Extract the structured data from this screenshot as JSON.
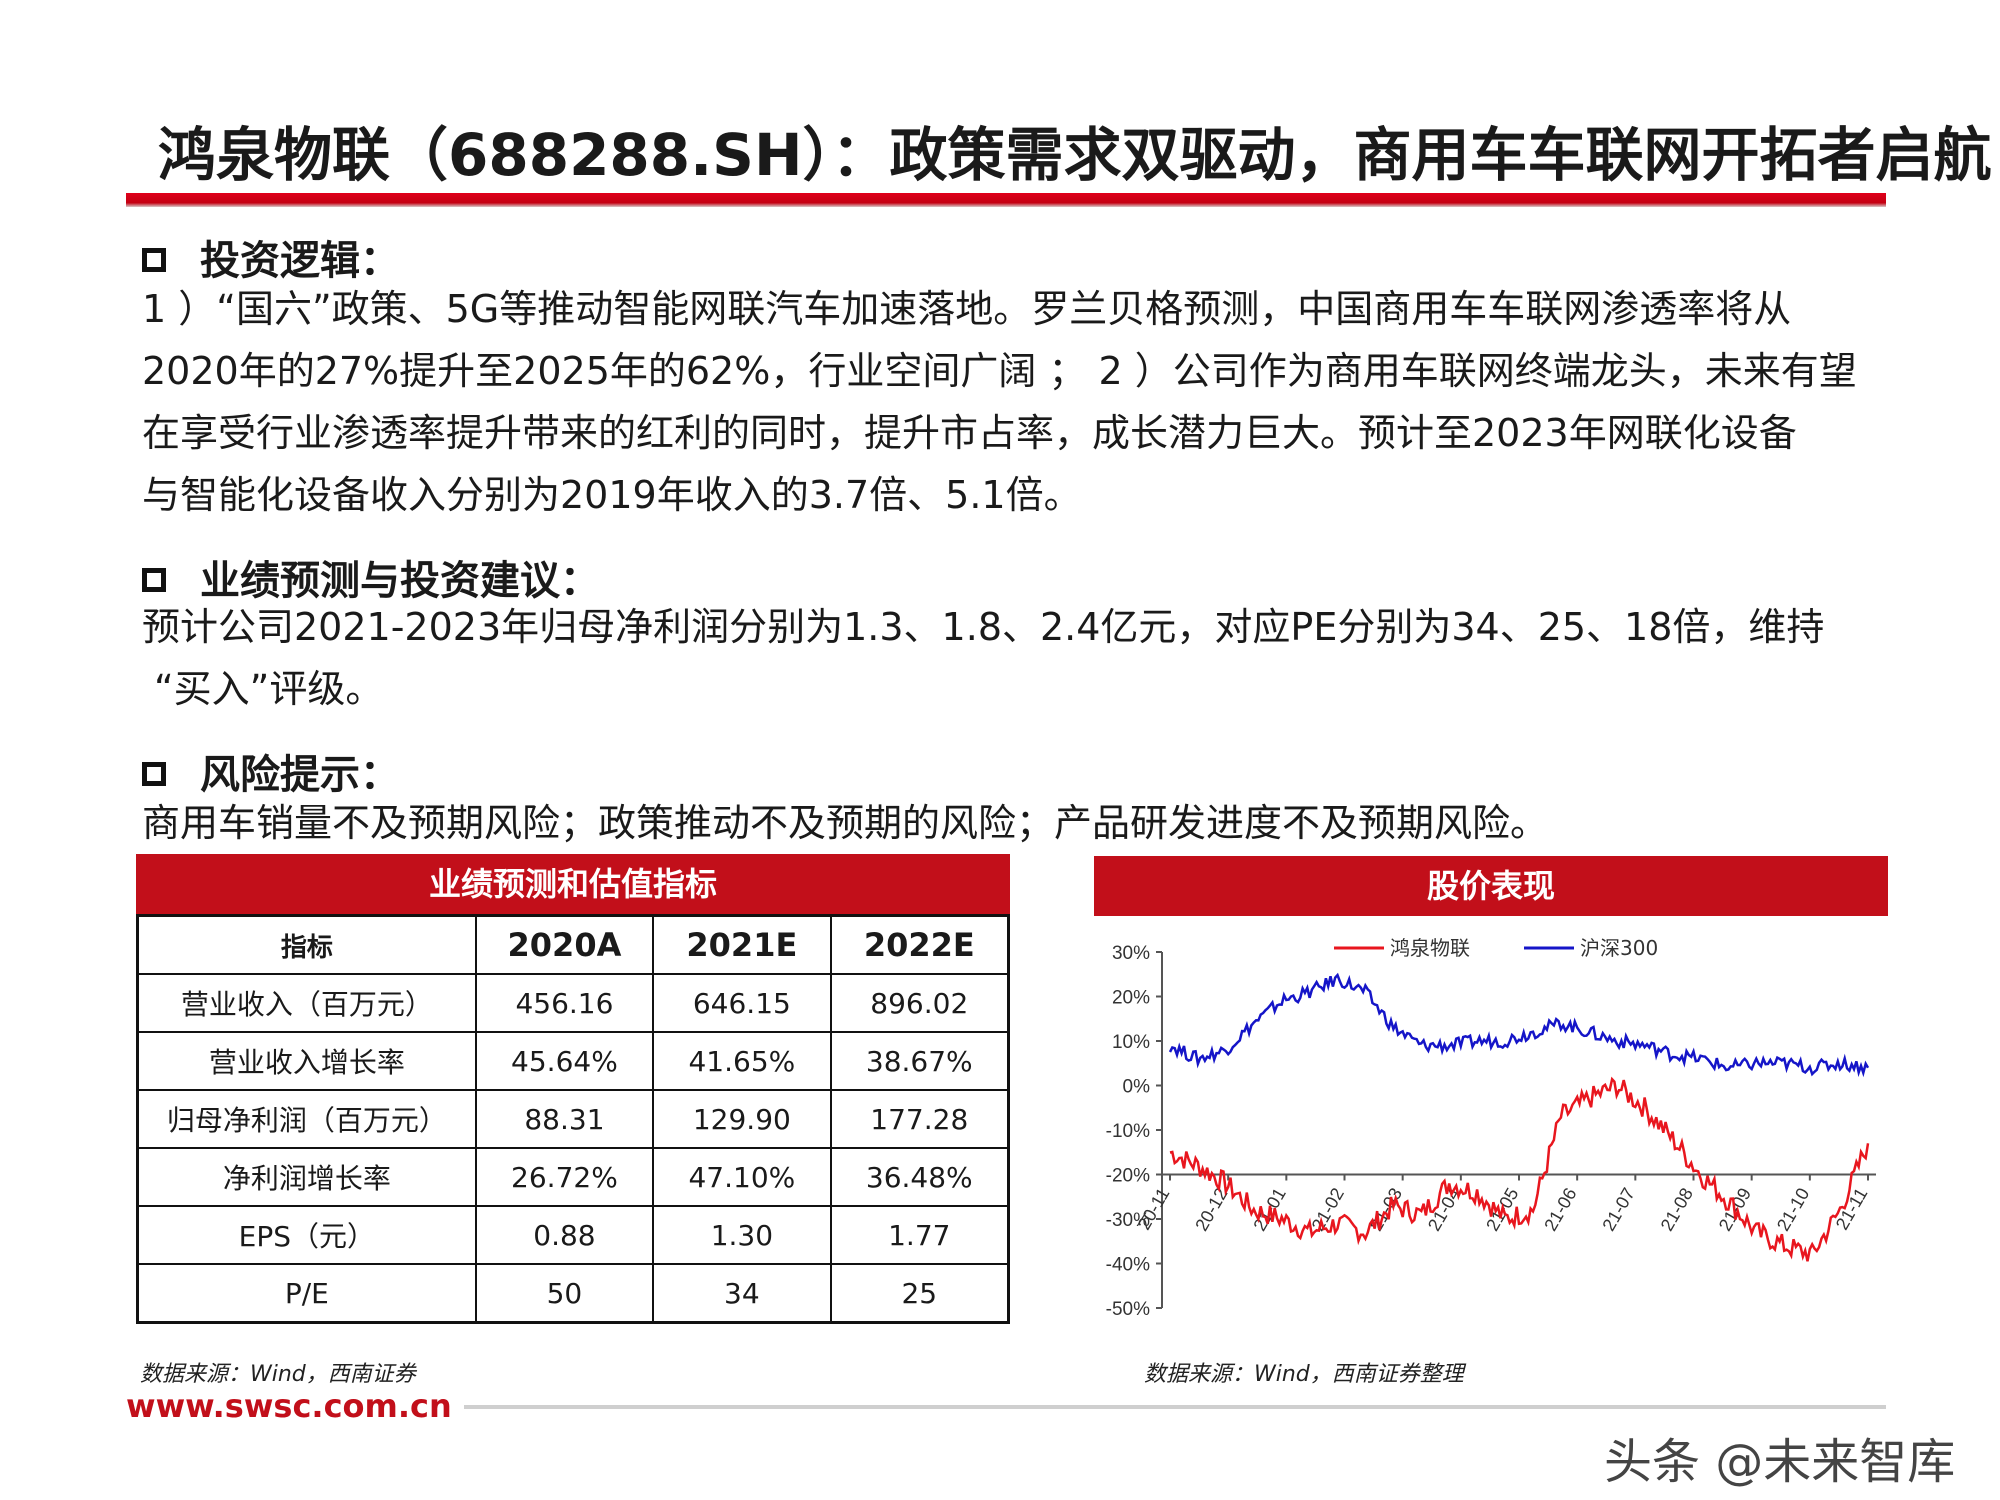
{
  "title": "鸿泉物联（688288.SH）：政策需求双驱动，商用车车联网开拓者启航",
  "sections": {
    "logic": {
      "heading": "投资逻辑：",
      "lines": [
        "1 ）“国六”政策、5G等推动智能网联汽车加速落地。罗兰贝格预测，中国商用车车联网渗透率将从",
        "2020年的27%提升至2025年的62%，行业空间广阔 ； 2 ）公司作为商用车联网终端龙头，未来有望",
        "在享受行业渗透率提升带来的红利的同时，提升市占率，成长潜力巨大。预计至2023年网联化设备",
        "与智能化设备收入分别为2019年收入的3.7倍、5.1倍。"
      ]
    },
    "forecast": {
      "heading": "业绩预测与投资建议：",
      "lines": [
        "预计公司2021-2023年归母净利润分别为1.3、1.8、2.4亿元，对应PE分别为34、25、18倍，维持",
        "“买入”评级。"
      ]
    },
    "risk": {
      "heading": "风险提示：",
      "lines": [
        "商用车销量不及预期风险；政策推动不及预期的风险；产品研发进度不及预期风险。"
      ]
    }
  },
  "table": {
    "title": "业绩预测和估值指标",
    "headers": [
      "指标",
      "2020A",
      "2021E",
      "2022E"
    ],
    "rows": [
      [
        "营业收入（百万元）",
        "456.16",
        "646.15",
        "896.02"
      ],
      [
        "营业收入增长率",
        "45.64%",
        "41.65%",
        "38.67%"
      ],
      [
        "归母净利润（百万元）",
        "88.31",
        "129.90",
        "177.28"
      ],
      [
        "净利润增长率",
        "26.72%",
        "47.10%",
        "36.48%"
      ],
      [
        "EPS（元）",
        "0.88",
        "1.30",
        "1.77"
      ],
      [
        "P/E",
        "50",
        "34",
        "25"
      ]
    ],
    "source": "数据来源：Wind，西南证券"
  },
  "chart": {
    "title": "股价表现",
    "source": "数据来源：Wind，西南证券整理"
  },
  "chart_data": {
    "type": "line",
    "title": "股价表现",
    "xlabel": "",
    "ylabel": "",
    "ylim": [
      -50,
      30
    ],
    "y_ticks": [
      "30%",
      "20%",
      "10%",
      "0%",
      "-10%",
      "-20%",
      "-30%",
      "-40%",
      "-50%"
    ],
    "x_ticks": [
      "20-11",
      "20-12",
      "21-01",
      "21-02",
      "21-03",
      "21-04",
      "21-05",
      "21-06",
      "21-07",
      "21-08",
      "21-09",
      "21-10",
      "21-11"
    ],
    "legend_position": "top",
    "grid": false,
    "x": [
      "20-11",
      "20-11",
      "20-12",
      "20-12",
      "21-01",
      "21-01",
      "21-02",
      "21-02",
      "21-03",
      "21-03",
      "21-04",
      "21-04",
      "21-05",
      "21-05",
      "21-06",
      "21-06",
      "21-07",
      "21-07",
      "21-08",
      "21-08",
      "21-09",
      "21-09",
      "21-10",
      "21-10",
      "21-11",
      "21-11"
    ],
    "series": [
      {
        "name": "鸿泉物联",
        "color": "#e8161e",
        "values": [
          -15,
          -18,
          -22,
          -28,
          -30,
          -33,
          -31,
          -33,
          -27,
          -29,
          -22,
          -24,
          -30,
          -28,
          -7,
          -3,
          0,
          -5,
          -12,
          -20,
          -26,
          -33,
          -36,
          -38,
          -28,
          -13
        ]
      },
      {
        "name": "沪深300",
        "color": "#1515c8",
        "values": [
          9,
          6,
          8,
          14,
          19,
          21,
          24,
          21,
          13,
          9,
          9,
          10,
          10,
          12,
          14,
          12,
          10,
          9,
          7,
          6,
          4,
          5,
          5,
          4,
          5,
          4
        ]
      }
    ]
  },
  "footer": {
    "website": "www.swsc.com.cn",
    "watermark": "头条 @未来智库"
  }
}
